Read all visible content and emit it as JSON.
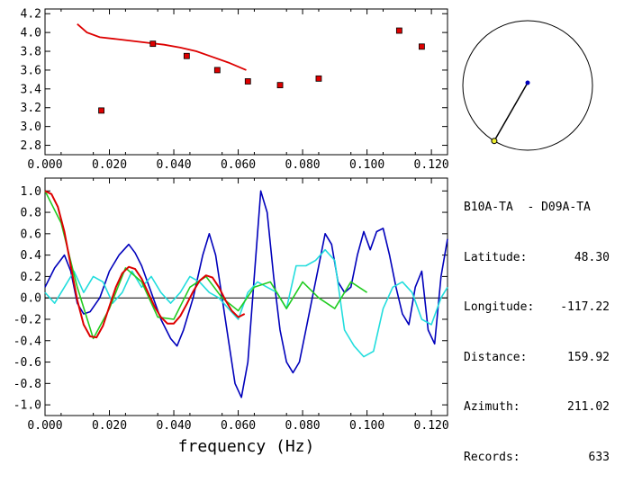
{
  "colors": {
    "red": "#dd0000",
    "blue": "#0000bb",
    "cyan": "#22dddd",
    "green": "#22cc22",
    "black": "#000000"
  },
  "station_info": {
    "title": "B10A-TA  - D09A-TA",
    "rows": [
      {
        "label": "Latitude:",
        "value": "48.30"
      },
      {
        "label": "Longitude:",
        "value": "-117.22"
      },
      {
        "label": "Distance:",
        "value": "159.92"
      },
      {
        "label": "Azimuth:",
        "value": "211.02"
      },
      {
        "label": "Records:",
        "value": "633"
      }
    ]
  },
  "azimuth_dial": {
    "azimuth_deg": 211.02
  },
  "chart_data": [
    {
      "type": "scatter",
      "xlim": [
        0.0,
        0.125
      ],
      "ylim": [
        2.7,
        4.25
      ],
      "xticks": [
        "0.000",
        "0.020",
        "0.040",
        "0.060",
        "0.080",
        "0.100",
        "0.120"
      ],
      "yticks": [
        "2.8",
        "3.0",
        "3.2",
        "3.4",
        "3.6",
        "3.8",
        "4.0",
        "4.2"
      ],
      "points": [
        {
          "x": 0.0175,
          "y": 3.17
        },
        {
          "x": 0.0335,
          "y": 3.88
        },
        {
          "x": 0.044,
          "y": 3.75
        },
        {
          "x": 0.0535,
          "y": 3.6
        },
        {
          "x": 0.063,
          "y": 3.48
        },
        {
          "x": 0.073,
          "y": 3.44
        },
        {
          "x": 0.085,
          "y": 3.51
        },
        {
          "x": 0.11,
          "y": 4.02
        },
        {
          "x": 0.117,
          "y": 3.85
        }
      ],
      "curve": {
        "x": [
          0.01,
          0.013,
          0.017,
          0.022,
          0.027,
          0.032,
          0.037,
          0.042,
          0.047,
          0.052,
          0.057,
          0.0625
        ],
        "y": [
          4.09,
          4.0,
          3.95,
          3.93,
          3.91,
          3.89,
          3.87,
          3.84,
          3.8,
          3.74,
          3.68,
          3.6
        ]
      }
    },
    {
      "type": "line",
      "xlabel": "frequency (Hz)",
      "xlim": [
        0.0,
        0.125
      ],
      "ylim": [
        -1.1,
        1.12
      ],
      "xticks": [
        "0.000",
        "0.020",
        "0.040",
        "0.060",
        "0.080",
        "0.100",
        "0.120"
      ],
      "yticks": [
        "1.0",
        "0.8",
        "0.6",
        "0.4",
        "0.2",
        "0.0",
        "-0.2",
        "-0.4",
        "-0.6",
        "-0.8",
        "-1.0"
      ],
      "series": [
        {
          "color": "blue",
          "x": [
            0.0,
            0.003,
            0.006,
            0.008,
            0.01,
            0.012,
            0.014,
            0.017,
            0.02,
            0.023,
            0.026,
            0.028,
            0.03,
            0.033,
            0.036,
            0.039,
            0.041,
            0.043,
            0.046,
            0.049,
            0.051,
            0.053,
            0.055,
            0.057,
            0.059,
            0.061,
            0.063,
            0.065,
            0.067,
            0.069,
            0.071,
            0.073,
            0.075,
            0.077,
            0.079,
            0.081,
            0.083,
            0.085,
            0.087,
            0.089,
            0.091,
            0.093,
            0.095,
            0.097,
            0.099,
            0.101,
            0.103,
            0.105,
            0.107,
            0.109,
            0.111,
            0.113,
            0.115,
            0.117,
            0.119,
            0.121,
            0.123,
            0.125
          ],
          "y": [
            0.1,
            0.28,
            0.4,
            0.25,
            -0.05,
            -0.15,
            -0.13,
            0.0,
            0.25,
            0.4,
            0.5,
            0.42,
            0.3,
            0.05,
            -0.2,
            -0.38,
            -0.45,
            -0.3,
            0.0,
            0.4,
            0.6,
            0.4,
            0.0,
            -0.4,
            -0.8,
            -0.93,
            -0.6,
            0.2,
            1.0,
            0.8,
            0.2,
            -0.3,
            -0.6,
            -0.7,
            -0.6,
            -0.3,
            0.0,
            0.3,
            0.6,
            0.5,
            0.15,
            0.05,
            0.1,
            0.4,
            0.62,
            0.45,
            0.62,
            0.65,
            0.4,
            0.1,
            -0.15,
            -0.25,
            0.1,
            0.25,
            -0.3,
            -0.43,
            0.2,
            0.55
          ]
        },
        {
          "color": "cyan",
          "x": [
            0.0,
            0.003,
            0.006,
            0.009,
            0.012,
            0.015,
            0.018,
            0.021,
            0.024,
            0.027,
            0.03,
            0.033,
            0.036,
            0.039,
            0.042,
            0.045,
            0.048,
            0.051,
            0.054,
            0.057,
            0.06,
            0.063,
            0.066,
            0.069,
            0.072,
            0.075,
            0.078,
            0.081,
            0.084,
            0.087,
            0.09,
            0.093,
            0.096,
            0.099,
            0.102,
            0.105,
            0.108,
            0.111,
            0.114,
            0.117,
            0.12,
            0.123,
            0.125
          ],
          "y": [
            0.05,
            -0.05,
            0.1,
            0.25,
            0.05,
            0.2,
            0.15,
            -0.05,
            0.05,
            0.25,
            0.1,
            0.2,
            0.05,
            -0.05,
            0.05,
            0.2,
            0.15,
            0.05,
            0.0,
            -0.1,
            -0.2,
            0.05,
            0.15,
            0.1,
            0.05,
            -0.1,
            0.3,
            0.3,
            0.35,
            0.45,
            0.35,
            -0.3,
            -0.45,
            -0.55,
            -0.5,
            -0.1,
            0.1,
            0.15,
            0.05,
            -0.2,
            -0.25,
            0.0,
            0.1
          ]
        },
        {
          "color": "green",
          "x": [
            0.0,
            0.005,
            0.01,
            0.015,
            0.02,
            0.025,
            0.03,
            0.035,
            0.04,
            0.045,
            0.05,
            0.055,
            0.06,
            0.065,
            0.07,
            0.075,
            0.08,
            0.085,
            0.09,
            0.095,
            0.1
          ],
          "y": [
            1.0,
            0.7,
            0.1,
            -0.38,
            -0.1,
            0.28,
            0.15,
            -0.18,
            -0.2,
            0.1,
            0.2,
            0.0,
            -0.12,
            0.1,
            0.15,
            -0.1,
            0.15,
            0.0,
            -0.1,
            0.15,
            0.05
          ]
        },
        {
          "color": "red",
          "x": [
            0.0,
            0.002,
            0.004,
            0.006,
            0.008,
            0.01,
            0.012,
            0.014,
            0.016,
            0.018,
            0.02,
            0.022,
            0.024,
            0.026,
            0.028,
            0.03,
            0.032,
            0.034,
            0.036,
            0.038,
            0.04,
            0.042,
            0.044,
            0.046,
            0.048,
            0.05,
            0.052,
            0.054,
            0.056,
            0.058,
            0.06,
            0.062
          ],
          "y": [
            1.0,
            0.97,
            0.85,
            0.62,
            0.3,
            -0.02,
            -0.25,
            -0.36,
            -0.37,
            -0.26,
            -0.08,
            0.1,
            0.23,
            0.29,
            0.27,
            0.18,
            0.05,
            -0.08,
            -0.18,
            -0.24,
            -0.24,
            -0.17,
            -0.06,
            0.06,
            0.16,
            0.21,
            0.19,
            0.1,
            -0.02,
            -0.12,
            -0.18,
            -0.15
          ]
        }
      ]
    }
  ]
}
